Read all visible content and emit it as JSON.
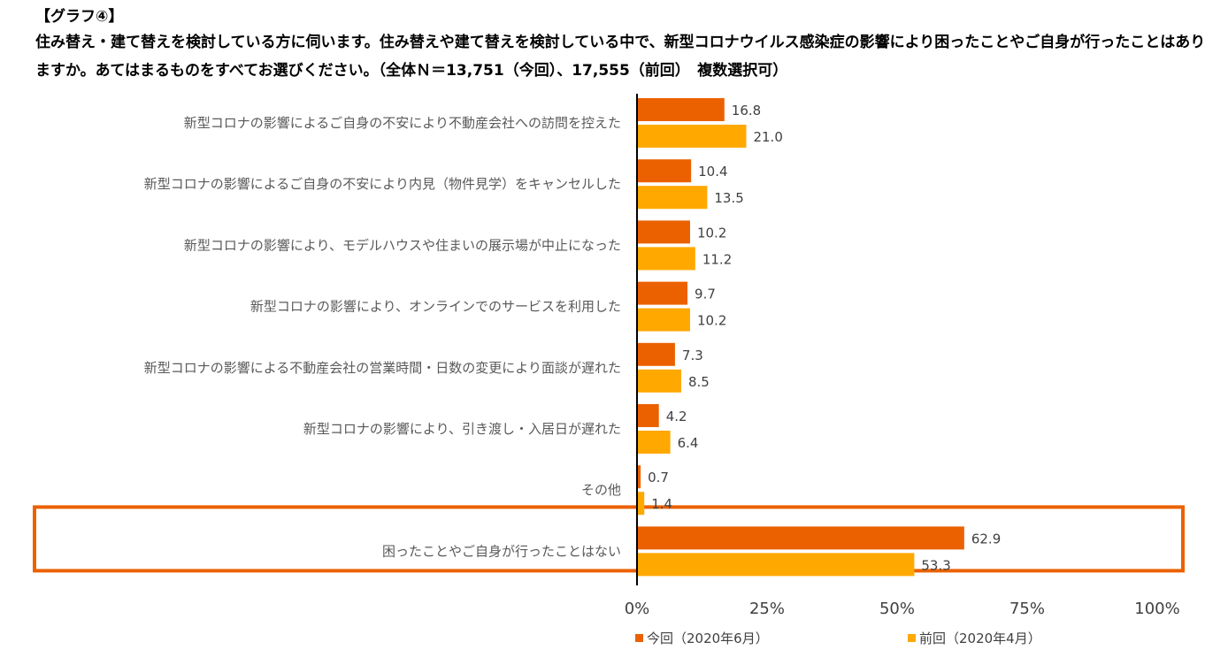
{
  "header": {
    "graph_label": "【グラフ④】",
    "question": "住み替え・建て替えを検討している方に伺います。住み替えや建て替えを検討している中で、新型コロナウイルス感染症の影響により困ったことやご自身が行ったことはありますか。あてはまるものをすべてお選びください。（全体Ｎ＝13,751（今回）、17,555（前回）　複数選択可）"
  },
  "colors": {
    "current": "#EB6100",
    "previous": "#FFA800",
    "highlight_border": "#EB6100",
    "axis": "#000000"
  },
  "chart_data": {
    "type": "bar",
    "orientation": "horizontal",
    "categories": [
      "新型コロナの影響によるご自身の不安により不動産会社への訪問を控えた",
      "新型コロナの影響によるご自身の不安により内見（物件見学）をキャンセルした",
      "新型コロナの影響により、モデルハウスや住まいの展示場が中止になった",
      "新型コロナの影響により、オンラインでのサービスを利用した",
      "新型コロナの影響による不動産会社の営業時間・日数の変更により面談が遅れた",
      "新型コロナの影響により、引き渡し・入居日が遅れた",
      "その他",
      "困ったことやご自身が行ったことはない"
    ],
    "series": [
      {
        "name": "今回（2020年6月）",
        "values": [
          16.8,
          10.4,
          10.2,
          9.7,
          7.3,
          4.2,
          0.7,
          62.9
        ]
      },
      {
        "name": "前回（2020年4月）",
        "values": [
          21.0,
          13.5,
          11.2,
          10.2,
          8.5,
          6.4,
          1.4,
          53.3
        ]
      }
    ],
    "value_labels": [
      [
        "16.8",
        "10.4",
        "10.2",
        "9.7",
        "7.3",
        "4.2",
        "0.7",
        "62.9"
      ],
      [
        "21.0",
        "13.5",
        "11.2",
        "10.2",
        "8.5",
        "6.4",
        "1.4",
        "53.3"
      ]
    ],
    "xlim": [
      0,
      100
    ],
    "xticks": [
      0,
      25,
      50,
      75,
      100
    ],
    "xtick_labels": [
      "0%",
      "25%",
      "50%",
      "75%",
      "100%"
    ],
    "highlighted_category": "困ったことやご自身が行ったことはない",
    "legend_position": "bottom",
    "grid": false
  }
}
